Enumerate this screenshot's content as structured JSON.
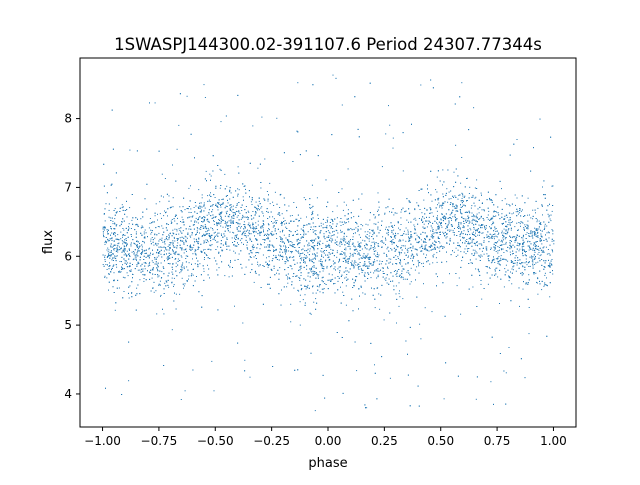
{
  "chart_data": {
    "type": "scatter",
    "title": "1SWASPJ144300.02-391107.6 Period 24307.77344s",
    "xlabel": "phase",
    "ylabel": "flux",
    "xlim": [
      -1.1,
      1.1
    ],
    "ylim": [
      3.52,
      8.88
    ],
    "xticks": [
      -1.0,
      -0.75,
      -0.5,
      -0.25,
      0.0,
      0.25,
      0.5,
      0.75,
      1.0
    ],
    "xtick_labels": [
      "−1.00",
      "−0.75",
      "−0.50",
      "−0.25",
      "0.00",
      "0.25",
      "0.50",
      "0.75",
      "1.00"
    ],
    "yticks": [
      4,
      5,
      6,
      7,
      8
    ],
    "ytick_labels": [
      "4",
      "5",
      "6",
      "7",
      "8"
    ],
    "grid": false,
    "legend": "none",
    "marker_color": "#1f77b4",
    "series": [
      {
        "phase": [
          -1.0,
          -0.9,
          -0.8,
          -0.7,
          -0.6,
          -0.5,
          -0.45,
          -0.4,
          -0.3,
          -0.2,
          -0.1,
          0.0,
          0.1,
          0.2,
          0.3,
          0.4,
          0.5,
          0.55,
          0.6,
          0.7,
          0.8,
          0.9,
          1.0
        ],
        "flux_median": [
          6.15,
          6.12,
          6.08,
          6.1,
          6.25,
          6.45,
          6.5,
          6.45,
          6.3,
          6.15,
          6.05,
          6.1,
          6.05,
          6.05,
          6.1,
          6.25,
          6.45,
          6.5,
          6.45,
          6.3,
          6.2,
          6.15,
          6.15
        ],
        "flux_spread": 0.45,
        "flux_min": 3.75,
        "flux_max": 8.65
      }
    ]
  }
}
